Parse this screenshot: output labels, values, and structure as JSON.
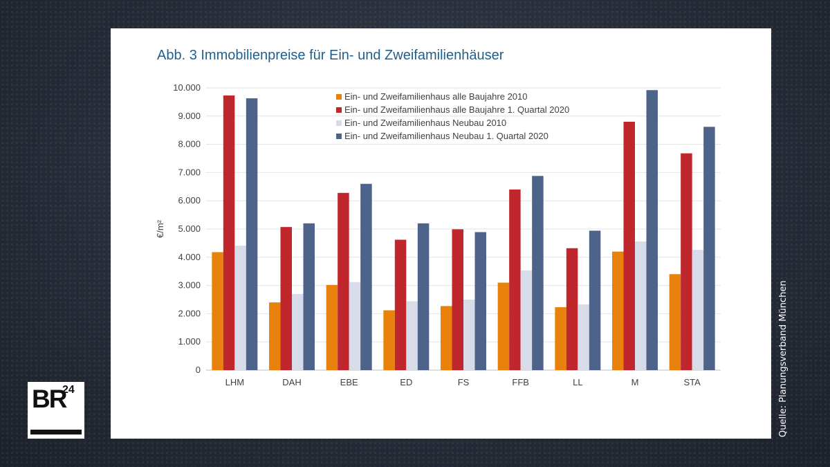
{
  "title": "Abb. 3 Immobilienpreise für Ein- und Zweifamilienhäuser",
  "source": "Quelle: Planungsverband München",
  "logo": {
    "text": "BR",
    "superscript": "24"
  },
  "chart_data": {
    "type": "bar",
    "title": "Abb. 3 Immobilienpreise für Ein- und Zweifamilienhäuser",
    "xlabel": "",
    "ylabel": "€/m²",
    "ylim": [
      0,
      10000
    ],
    "yticks": [
      {
        "value": 0,
        "label": "0"
      },
      {
        "value": 1000,
        "label": "1.000"
      },
      {
        "value": 2000,
        "label": "2.000"
      },
      {
        "value": 3000,
        "label": "3.000"
      },
      {
        "value": 4000,
        "label": "4.000"
      },
      {
        "value": 5000,
        "label": "5.000"
      },
      {
        "value": 6000,
        "label": "6.000"
      },
      {
        "value": 7000,
        "label": "7.000"
      },
      {
        "value": 8000,
        "label": "8.000"
      },
      {
        "value": 9000,
        "label": "9.000"
      },
      {
        "value": 10000,
        "label": "10.000"
      }
    ],
    "grid": true,
    "legend_position": "top-center",
    "categories": [
      "LHM",
      "DAH",
      "EBE",
      "ED",
      "FS",
      "FFB",
      "LL",
      "M",
      "STA"
    ],
    "series": [
      {
        "name": "Ein- und Zweifamilienhaus alle Baujahre 2010",
        "color": "#e8820c",
        "values": [
          4180,
          2400,
          3020,
          2120,
          2270,
          3100,
          2230,
          4200,
          3400
        ]
      },
      {
        "name": "Ein- und Zweifamilienhaus alle Baujahre 1. Quartal 2020",
        "color": "#c0272d",
        "values": [
          9730,
          5070,
          6280,
          4620,
          4990,
          6400,
          4320,
          8800,
          7680
        ]
      },
      {
        "name": "Ein- und Zweifamilienhaus Neubau 2010",
        "color": "#d8dce9",
        "values": [
          4410,
          2700,
          3120,
          2440,
          2500,
          3530,
          2330,
          4560,
          4260
        ]
      },
      {
        "name": "Ein- und Zweifamilienhaus Neubau 1. Quartal 2020",
        "color": "#4e6389",
        "values": [
          9630,
          5200,
          6600,
          5200,
          4890,
          6880,
          4940,
          9920,
          8620
        ]
      }
    ]
  }
}
